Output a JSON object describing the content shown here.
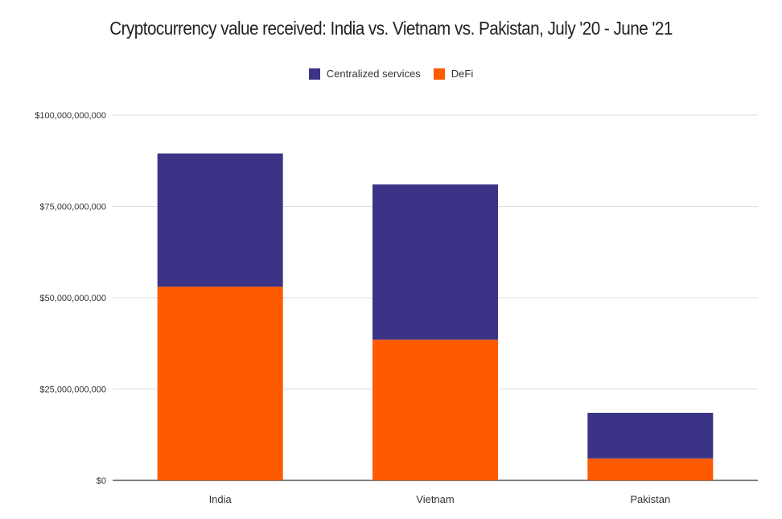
{
  "chart_data": {
    "type": "bar",
    "stacked": true,
    "title": "Cryptocurrency value received: India vs. Vietnam vs. Pakistan, July '20 - June '21",
    "xlabel": "",
    "ylabel": "",
    "categories": [
      "India",
      "Vietnam",
      "Pakistan"
    ],
    "series": [
      {
        "name": "DeFi",
        "color": "#ff5a00",
        "values": [
          53000000000,
          38500000000,
          6000000000
        ]
      },
      {
        "name": "Centralized services",
        "color": "#3b3486",
        "values": [
          36500000000,
          42500000000,
          12500000000
        ]
      }
    ],
    "legend_order": [
      "Centralized services",
      "DeFi"
    ],
    "legend_position": "top-center",
    "ylim": [
      0,
      100000000000
    ],
    "yticks": [
      0,
      25000000000,
      50000000000,
      75000000000,
      100000000000
    ],
    "ytick_labels": [
      "$0",
      "$25,000,000,000",
      "$50,000,000,000",
      "$75,000,000,000",
      "$100,000,000,000"
    ],
    "grid": true
  }
}
